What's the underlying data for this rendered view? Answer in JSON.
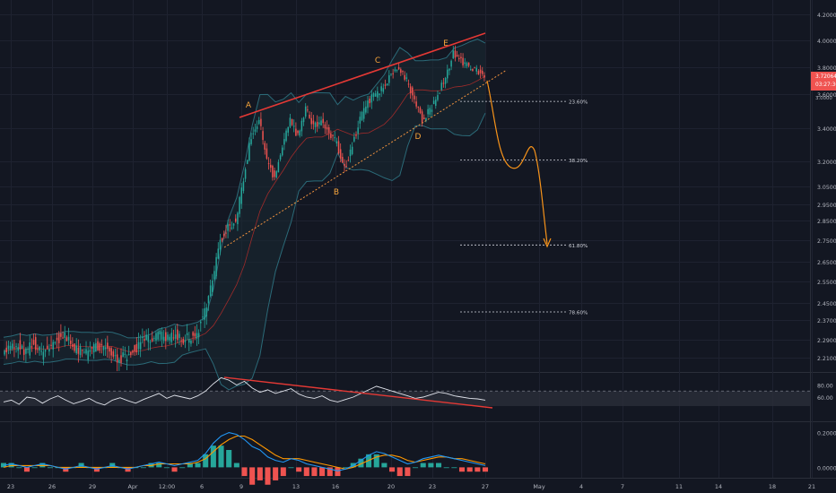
{
  "theme": {
    "background": "#131722",
    "grid": "#1e2230",
    "axis_text": "#b2b5be",
    "candle_up": "#26a69a",
    "candle_down": "#ef5350",
    "bollinger": "#2b6a78",
    "bollinger_fill": "#1a2a33",
    "midline": "#9e2b2b",
    "trend_line": "#e53935",
    "support_line": "#f0923e",
    "projection": "#f7931a",
    "wave_label": "#f7a53b",
    "fib_line": "#d1d4dc",
    "price_tag": "#ef5350",
    "rsi_band_fill": "#2a2e39",
    "macd_line": "#2196f3",
    "signal_line": "#ff9800",
    "hist_up": "#26a69a",
    "hist_down": "#ef5350"
  },
  "chart_data": [
    {
      "type": "candlestick",
      "ylim": [
        2.15,
        4.26
      ],
      "y_ticks": [
        "4.20000",
        "4.00000",
        "3.80000",
        "3.60000",
        "3.40000",
        "3.20000",
        "3.05000",
        "2.95000",
        "2.85000",
        "2.75000",
        "2.65000",
        "2.55000",
        "2.45000",
        "2.37000",
        "2.29000",
        "2.21000"
      ],
      "y_tick_values": [
        4.2,
        4.0,
        3.8,
        3.6,
        3.4,
        3.2,
        3.05,
        2.95,
        2.85,
        2.75,
        2.65,
        2.55,
        2.45,
        2.37,
        2.29,
        2.21
      ],
      "y_scale": "non-linear (as printed)",
      "x_ticks": [
        "23",
        "26",
        "29",
        "Apr",
        "12:00",
        "6",
        "9",
        "13",
        "16",
        "20",
        "23",
        "27",
        "May",
        "4",
        "7",
        "11",
        "14",
        "18",
        "21"
      ],
      "last_price": "3.72064",
      "countdown": "03:27:36",
      "price_overlap": "3.0000",
      "wave_labels": [
        "A",
        "B",
        "C",
        "D",
        "E"
      ],
      "fib_levels": [
        "23.60%",
        "38.20%",
        "61.80%",
        "78.60%"
      ],
      "fib_values": [
        3.56,
        3.21,
        2.73,
        2.41
      ],
      "series": [
        {
          "name": "",
          "role": "price, approximate close path (data units)",
          "values": [
            2.24,
            2.25,
            2.27,
            2.23,
            2.28,
            2.22,
            2.26,
            2.29,
            2.31,
            2.25,
            2.24,
            2.22,
            2.27,
            2.26,
            2.24,
            2.2,
            2.22,
            2.25,
            2.28,
            2.3,
            2.32,
            2.29,
            2.31,
            2.3,
            2.29,
            2.32,
            2.4,
            2.55,
            2.75,
            2.82,
            2.85,
            3.1,
            3.35,
            3.45,
            3.2,
            3.1,
            3.3,
            3.45,
            3.35,
            3.52,
            3.4,
            3.45,
            3.38,
            3.3,
            3.15,
            3.3,
            3.45,
            3.55,
            3.6,
            3.65,
            3.75,
            3.8,
            3.7,
            3.55,
            3.45,
            3.5,
            3.6,
            3.72,
            3.9,
            3.85,
            3.8,
            3.78,
            3.72
          ]
        }
      ],
      "annotations": {
        "resistance": "upper red trend line A-C-E",
        "support": "orange dotted rising line through B and D",
        "projection": "curved orange arrow falling to the 61.80% level"
      }
    },
    {
      "type": "line",
      "ylim": [
        20,
        100
      ],
      "y_ticks": [
        "80.00",
        "60.00"
      ],
      "y_tick_values": [
        80,
        60
      ],
      "series": [
        {
          "name": "",
          "values": [
            52,
            55,
            48,
            60,
            58,
            50,
            57,
            62,
            55,
            49,
            53,
            58,
            51,
            47,
            55,
            59,
            54,
            50,
            56,
            61,
            66,
            58,
            63,
            60,
            57,
            62,
            70,
            82,
            92,
            88,
            80,
            86,
            75,
            68,
            72,
            66,
            70,
            74,
            65,
            60,
            58,
            62,
            55,
            52,
            56,
            60,
            66,
            72,
            78,
            74,
            70,
            66,
            62,
            58,
            60,
            64,
            68,
            66,
            62,
            60,
            58,
            57,
            55
          ]
        }
      ],
      "divergence": "red line from the first peak down to the latest peak"
    },
    {
      "type": "line",
      "ylim": [
        -0.06,
        0.26
      ],
      "y_ticks": [
        "0.20000",
        "0.00000"
      ],
      "y_tick_values": [
        0.2,
        0.0
      ],
      "series": [
        {
          "name": "",
          "values": [
            0.01,
            0.02,
            0.01,
            0.0,
            0.01,
            0.02,
            0.01,
            0.0,
            -0.01,
            0.0,
            0.01,
            0.0,
            -0.01,
            0.0,
            0.01,
            0.0,
            -0.01,
            0.0,
            0.01,
            0.02,
            0.03,
            0.02,
            0.01,
            0.02,
            0.03,
            0.04,
            0.08,
            0.14,
            0.18,
            0.2,
            0.19,
            0.16,
            0.12,
            0.1,
            0.06,
            0.04,
            0.03,
            0.05,
            0.04,
            0.02,
            0.01,
            0.0,
            -0.01,
            -0.02,
            -0.01,
            0.01,
            0.04,
            0.07,
            0.09,
            0.08,
            0.06,
            0.04,
            0.02,
            0.03,
            0.05,
            0.06,
            0.07,
            0.06,
            0.05,
            0.04,
            0.03,
            0.02,
            0.01
          ]
        },
        {
          "name": "",
          "values": [
            0.0,
            0.01,
            0.01,
            0.01,
            0.01,
            0.01,
            0.01,
            0.0,
            0.0,
            0.0,
            0.0,
            0.0,
            0.0,
            0.0,
            0.0,
            0.0,
            0.0,
            0.0,
            0.01,
            0.01,
            0.02,
            0.02,
            0.02,
            0.02,
            0.02,
            0.03,
            0.05,
            0.09,
            0.13,
            0.16,
            0.18,
            0.18,
            0.16,
            0.13,
            0.1,
            0.07,
            0.05,
            0.05,
            0.05,
            0.04,
            0.03,
            0.02,
            0.01,
            0.0,
            -0.01,
            0.0,
            0.02,
            0.04,
            0.06,
            0.07,
            0.07,
            0.06,
            0.04,
            0.03,
            0.04,
            0.05,
            0.06,
            0.06,
            0.05,
            0.05,
            0.04,
            0.03,
            0.02
          ]
        }
      ]
    }
  ]
}
